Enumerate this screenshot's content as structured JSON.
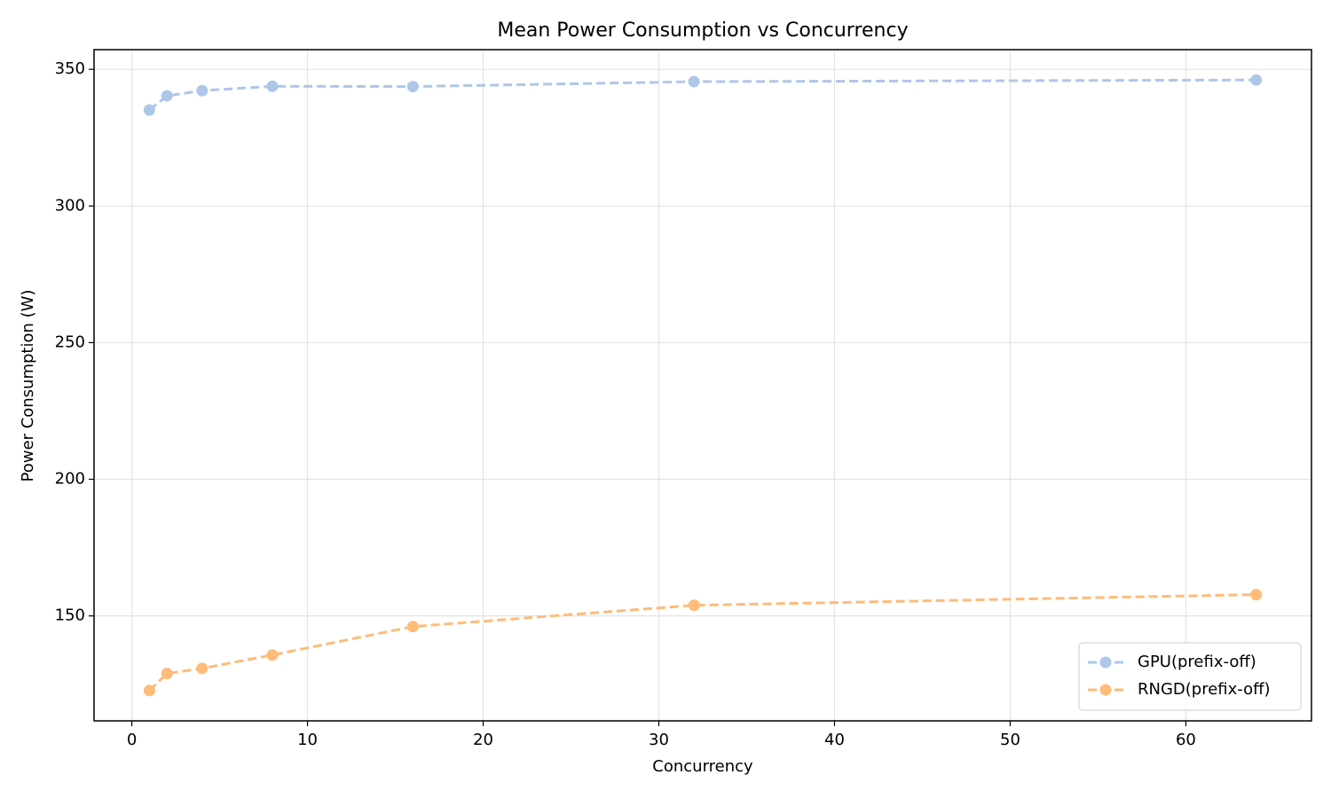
{
  "chart_data": {
    "type": "line",
    "title": "Mean Power Consumption vs Concurrency",
    "x_label": "Concurrency",
    "y_label": "Power Consumption (W)",
    "x": [
      1,
      2,
      4,
      8,
      16,
      32,
      64
    ],
    "series": [
      {
        "name": "GPU(prefix-off)",
        "color": "#aec7e8",
        "values": [
          335.1,
          340.3,
          342.2,
          343.8,
          343.7,
          345.5,
          346.1
        ]
      },
      {
        "name": "RNGD(prefix-off)",
        "color": "#ffbb78",
        "values": [
          122.7,
          128.9,
          130.8,
          135.7,
          146.1,
          153.9,
          157.8
        ]
      }
    ],
    "xlim": [
      -2.15,
      67.15
    ],
    "xticks": [
      0,
      10,
      20,
      30,
      40,
      50,
      60
    ],
    "ylim": [
      111.6,
      357.2
    ],
    "yticks": [
      150,
      200,
      250,
      300,
      350
    ],
    "grid": true,
    "legend": "lower right",
    "line_style": "dashed"
  }
}
